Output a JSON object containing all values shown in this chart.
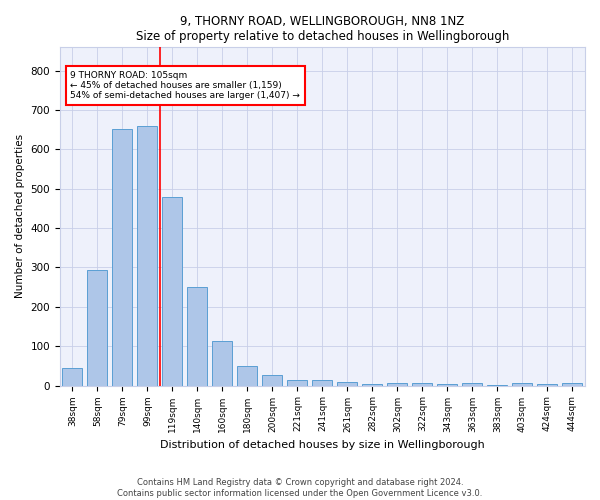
{
  "title1": "9, THORNY ROAD, WELLINGBOROUGH, NN8 1NZ",
  "title2": "Size of property relative to detached houses in Wellingborough",
  "xlabel": "Distribution of detached houses by size in Wellingborough",
  "ylabel": "Number of detached properties",
  "bar_color": "#aec6e8",
  "bar_edge_color": "#5a9fd4",
  "categories": [
    "38sqm",
    "58sqm",
    "79sqm",
    "99sqm",
    "119sqm",
    "140sqm",
    "160sqm",
    "180sqm",
    "200sqm",
    "221sqm",
    "241sqm",
    "261sqm",
    "282sqm",
    "302sqm",
    "322sqm",
    "343sqm",
    "363sqm",
    "383sqm",
    "403sqm",
    "424sqm",
    "444sqm"
  ],
  "values": [
    45,
    293,
    652,
    660,
    478,
    250,
    113,
    50,
    26,
    15,
    15,
    10,
    5,
    7,
    7,
    5,
    7,
    1,
    7,
    5,
    7
  ],
  "ylim": [
    0,
    860
  ],
  "yticks": [
    0,
    100,
    200,
    300,
    400,
    500,
    600,
    700,
    800
  ],
  "red_line_x": 3.5,
  "annotation_text": "9 THORNY ROAD: 105sqm\n← 45% of detached houses are smaller (1,159)\n54% of semi-detached houses are larger (1,407) →",
  "annotation_box_color": "white",
  "annotation_box_edge_color": "red",
  "footer": "Contains HM Land Registry data © Crown copyright and database right 2024.\nContains public sector information licensed under the Open Government Licence v3.0.",
  "background_color": "#eef1fb",
  "grid_color": "#c8cfe8",
  "fig_width": 6.0,
  "fig_height": 5.0,
  "dpi": 100
}
